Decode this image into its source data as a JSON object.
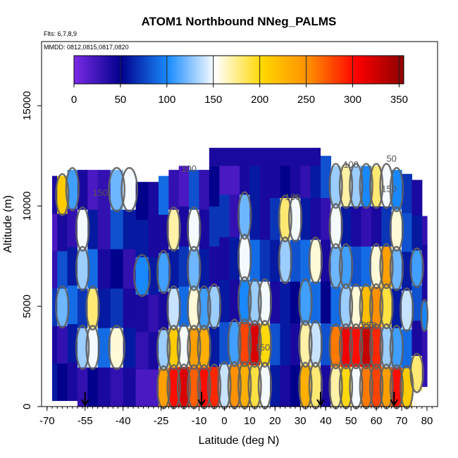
{
  "chart_data": {
    "type": "heatmap",
    "title": "ATOM1 Northbound NNeg_PALMS",
    "flights_label": "Flts: 6,7,8,9",
    "dates_label": "MMDD: 0812,0815,0817,0820",
    "xlabel": "Latitude (deg N)",
    "ylabel": "Altitude (m)",
    "xlim": [
      -70,
      82
    ],
    "ylim": [
      0,
      17500
    ],
    "xticks": [
      -70,
      -55,
      -40,
      -25,
      -10,
      0,
      10,
      20,
      30,
      40,
      50,
      60,
      70,
      80
    ],
    "yticks": [
      0,
      5000,
      10000,
      15000
    ],
    "colorbar": {
      "ticks": [
        0,
        50,
        100,
        150,
        200,
        250,
        300,
        350
      ],
      "range": [
        0,
        355
      ],
      "colors": [
        "#7b2ae6",
        "#00008b",
        "#1a8cff",
        "#ffffff",
        "#ffd700",
        "#ff8c00",
        "#ff0000",
        "#8b0000"
      ]
    },
    "columns": [
      {
        "x0": -68,
        "x1": -66,
        "y0": 300,
        "y1": 11500,
        "values": [
          60,
          40,
          70,
          30,
          20,
          40
        ]
      },
      {
        "x0": -66,
        "x1": -62,
        "y0": 300,
        "y1": 11500,
        "values": [
          50,
          30,
          120,
          80,
          40,
          210
        ]
      },
      {
        "x0": -62,
        "x1": -58,
        "y0": 300,
        "y1": 11800,
        "values": [
          40,
          60,
          90,
          60,
          30,
          110
        ]
      },
      {
        "x0": -58,
        "x1": -54,
        "y0": 0,
        "y1": 11800,
        "values": [
          30,
          130,
          70,
          130,
          150,
          40
        ]
      },
      {
        "x0": -54,
        "x1": -50,
        "y0": 0,
        "y1": 11800,
        "values": [
          50,
          150,
          180,
          90,
          60,
          20
        ]
      },
      {
        "x0": -50,
        "x1": -45,
        "y0": 0,
        "y1": 11800,
        "values": [
          40,
          90,
          60,
          40,
          30,
          30
        ]
      },
      {
        "x0": -45,
        "x1": -40,
        "y0": 0,
        "y1": 11800,
        "values": [
          30,
          160,
          70,
          50,
          80,
          120
        ]
      },
      {
        "x0": -40,
        "x1": -35,
        "y0": 0,
        "y1": 11800,
        "values": [
          40,
          60,
          40,
          30,
          60,
          150
        ]
      },
      {
        "x0": -35,
        "x1": -30,
        "y0": 0,
        "y1": 11200,
        "values": [
          20,
          30,
          40,
          100,
          60,
          50
        ]
      },
      {
        "x0": -30,
        "x1": -26,
        "y0": 0,
        "y1": 11200,
        "values": [
          20,
          40,
          30,
          60,
          40,
          40
        ]
      },
      {
        "x0": -26,
        "x1": -22,
        "y0": 0,
        "y1": 11500,
        "values": [
          240,
          130,
          40,
          110,
          40,
          90
        ]
      },
      {
        "x0": -22,
        "x1": -18,
        "y0": 0,
        "y1": 11800,
        "values": [
          300,
          210,
          140,
          60,
          170,
          30
        ]
      },
      {
        "x0": -18,
        "x1": -14,
        "y0": 0,
        "y1": 12000,
        "values": [
          320,
          150,
          90,
          70,
          40,
          20
        ]
      },
      {
        "x0": -14,
        "x1": -10,
        "y0": 0,
        "y1": 11800,
        "values": [
          270,
          240,
          160,
          120,
          150,
          80
        ]
      },
      {
        "x0": -10,
        "x1": -6,
        "y0": 0,
        "y1": 11800,
        "values": [
          300,
          230,
          110,
          60,
          40,
          30
        ]
      },
      {
        "x0": -6,
        "x1": -2,
        "y0": 0,
        "y1": 12000,
        "values": [
          290,
          60,
          130,
          40,
          70,
          50
        ]
      },
      {
        "x0": -2,
        "x1": 2,
        "y0": 0,
        "y1": 12700,
        "values": [
          140,
          80,
          60,
          40,
          70,
          20
        ]
      },
      {
        "x0": 2,
        "x1": 6,
        "y0": 0,
        "y1": 12700,
        "values": [
          250,
          110,
          40,
          60,
          30,
          20
        ]
      },
      {
        "x0": 6,
        "x1": 10,
        "y0": 0,
        "y1": 12700,
        "values": [
          230,
          280,
          100,
          150,
          120,
          40
        ]
      },
      {
        "x0": 10,
        "x1": 14,
        "y0": 0,
        "y1": 12500,
        "values": [
          190,
          320,
          130,
          90,
          60,
          60
        ]
      },
      {
        "x0": 14,
        "x1": 18,
        "y0": 0,
        "y1": 12500,
        "values": [
          150,
          200,
          150,
          70,
          40,
          40
        ]
      },
      {
        "x0": 18,
        "x1": 22,
        "y0": 0,
        "y1": 12500,
        "values": [
          60,
          80,
          40,
          60,
          70,
          40
        ]
      },
      {
        "x0": 22,
        "x1": 26,
        "y0": 0,
        "y1": 12500,
        "values": [
          40,
          60,
          60,
          130,
          180,
          50
        ]
      },
      {
        "x0": 26,
        "x1": 30,
        "y0": 0,
        "y1": 12500,
        "values": [
          50,
          40,
          50,
          80,
          150,
          40
        ]
      },
      {
        "x0": 30,
        "x1": 34,
        "y0": 0,
        "y1": 12500,
        "values": [
          230,
          170,
          110,
          90,
          60,
          30
        ]
      },
      {
        "x0": 34,
        "x1": 38,
        "y0": 0,
        "y1": 12500,
        "values": [
          180,
          140,
          90,
          160,
          40,
          60
        ]
      },
      {
        "x0": 38,
        "x1": 42,
        "y0": 0,
        "y1": 12500,
        "values": [
          40,
          80,
          50,
          40,
          30,
          80
        ]
      },
      {
        "x0": 42,
        "x1": 46,
        "y0": 0,
        "y1": 12000,
        "values": [
          170,
          260,
          90,
          120,
          150,
          130
        ]
      },
      {
        "x0": 46,
        "x1": 50,
        "y0": 0,
        "y1": 12000,
        "values": [
          200,
          310,
          130,
          110,
          60,
          170
        ]
      },
      {
        "x0": 50,
        "x1": 54,
        "y0": 0,
        "y1": 12000,
        "values": [
          150,
          300,
          160,
          80,
          40,
          130
        ]
      },
      {
        "x0": 54,
        "x1": 58,
        "y0": 0,
        "y1": 12000,
        "values": [
          260,
          330,
          220,
          90,
          30,
          100
        ]
      },
      {
        "x0": 58,
        "x1": 62,
        "y0": 0,
        "y1": 12000,
        "values": [
          280,
          290,
          250,
          160,
          40,
          180
        ]
      },
      {
        "x0": 62,
        "x1": 66,
        "y0": 0,
        "y1": 12000,
        "values": [
          240,
          130,
          190,
          240,
          70,
          150
        ]
      },
      {
        "x0": 66,
        "x1": 70,
        "y0": 0,
        "y1": 11800,
        "values": [
          300,
          110,
          60,
          120,
          160,
          100
        ]
      },
      {
        "x0": 70,
        "x1": 74,
        "y0": 0,
        "y1": 11600,
        "values": [
          210,
          90,
          140,
          60,
          80,
          70
        ]
      },
      {
        "x0": 74,
        "x1": 78,
        "y0": 800,
        "y1": 11300,
        "values": [
          180,
          40,
          80,
          110,
          60,
          40
        ]
      },
      {
        "x0": 78,
        "x1": 80,
        "y0": 1000,
        "y1": 9500,
        "values": [
          30,
          30,
          100,
          40,
          40,
          30
        ]
      }
    ],
    "top_band": {
      "x0": -6,
      "x1": 38,
      "y0": 12000,
      "y1": 12900,
      "value": 40
    },
    "contour_labels": [
      {
        "text": "100",
        "x": 50,
        "y": 11900
      },
      {
        "text": "50",
        "x": 66,
        "y": 12200
      },
      {
        "text": "150",
        "x": 65,
        "y": 10700
      },
      {
        "text": "150",
        "x": -49,
        "y": 10500
      },
      {
        "text": "100",
        "x": -14,
        "y": 11700
      },
      {
        "text": "100",
        "x": 27,
        "y": 10300
      },
      {
        "text": "150",
        "x": 15,
        "y": 2800
      },
      {
        "text": "250",
        "x": 57,
        "y": 3900
      }
    ],
    "arrows_x": [
      -55,
      -9,
      38,
      67
    ]
  }
}
